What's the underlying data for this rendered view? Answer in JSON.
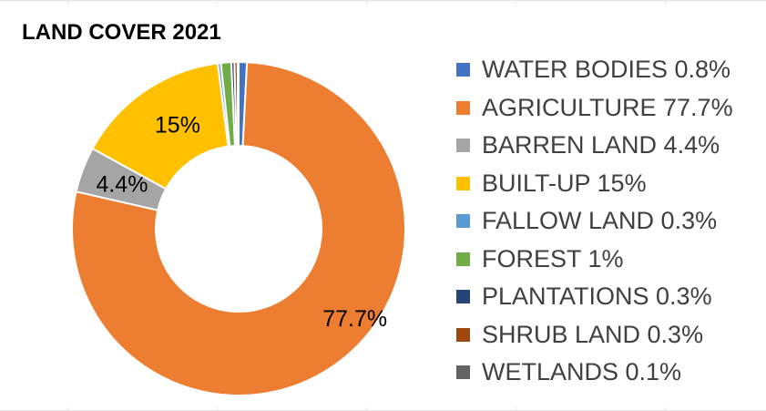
{
  "chart_data": {
    "type": "pie",
    "title": "LAND COVER 2021",
    "donut": true,
    "legend_position": "right",
    "slices": [
      {
        "label": "WATER BODIES",
        "value": 0.8,
        "legend": "WATER BODIES 0.8%",
        "data_label": "",
        "color": "#4472c4"
      },
      {
        "label": "AGRICULTURE",
        "value": 77.7,
        "legend": "AGRICULTURE 77.7%",
        "data_label": "77.7%",
        "color": "#ed7d31"
      },
      {
        "label": "BARREN LAND",
        "value": 4.4,
        "legend": "BARREN LAND 4.4%",
        "data_label": "4.4%",
        "color": "#a5a5a5"
      },
      {
        "label": "BUILT-UP",
        "value": 15,
        "legend": "BUILT-UP 15%",
        "data_label": "15%",
        "color": "#ffc000"
      },
      {
        "label": "FALLOW LAND",
        "value": 0.3,
        "legend": "FALLOW LAND 0.3%",
        "data_label": "",
        "color": "#5b9bd5"
      },
      {
        "label": "FOREST",
        "value": 1,
        "legend": "FOREST 1%",
        "data_label": "",
        "color": "#70ad47"
      },
      {
        "label": "PLANTATIONS",
        "value": 0.3,
        "legend": "PLANTATIONS 0.3%",
        "data_label": "",
        "color": "#264478"
      },
      {
        "label": "SHRUB LAND",
        "value": 0.3,
        "legend": "SHRUB LAND 0.3%",
        "data_label": "",
        "color": "#9e480e"
      },
      {
        "label": "WETLANDS",
        "value": 0.1,
        "legend": "WETLANDS 0.1%",
        "data_label": "",
        "color": "#636363"
      }
    ]
  }
}
